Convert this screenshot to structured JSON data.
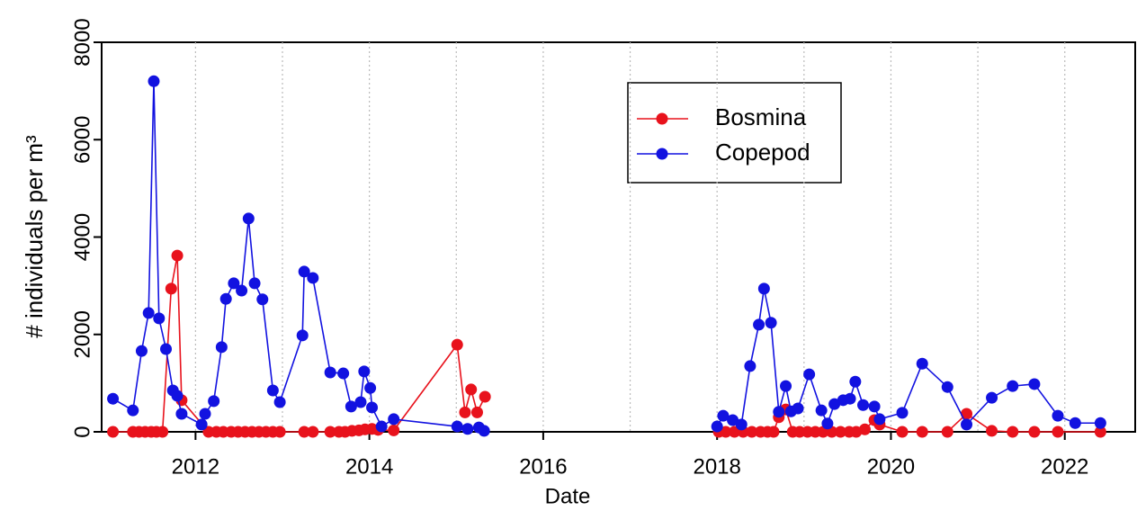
{
  "chart_data": {
    "type": "line",
    "x_label": "Date",
    "y_label": "# individuals per m³",
    "xlim": [
      2010.92,
      2022.81
    ],
    "xticks": [
      2012,
      2014,
      2016,
      2018,
      2020,
      2022
    ],
    "x_grid": [
      2012,
      2013,
      2014,
      2015,
      2016,
      2017,
      2018,
      2019,
      2020,
      2021,
      2022
    ],
    "ylim": [
      0,
      8000
    ],
    "yticks": [
      0,
      2000,
      4000,
      6000,
      8000
    ],
    "legend_position": "top-center",
    "series": [
      {
        "name": "Bosmina",
        "color": "#e8121c",
        "x": [
          2011.05,
          2011.28,
          2011.35,
          2011.42,
          2011.49,
          2011.55,
          2011.62,
          2011.72,
          2011.79,
          2011.84,
          2012.15,
          2012.24,
          2012.32,
          2012.41,
          2012.49,
          2012.57,
          2012.65,
          2012.73,
          2012.81,
          2012.89,
          2012.97,
          2013.25,
          2013.35,
          2013.55,
          2013.65,
          2013.72,
          2013.8,
          2013.88,
          2013.95,
          2014.03,
          2014.1,
          2014.28,
          2015.01,
          2015.1,
          2015.17,
          2015.24,
          2015.33,
          2015.4,
          2018.02,
          2018.1,
          2018.2,
          2018.3,
          2018.4,
          2018.5,
          2018.58,
          2018.65,
          2018.71,
          2018.79,
          2018.87,
          2018.95,
          2019.04,
          2019.13,
          2019.22,
          2019.32,
          2019.42,
          2019.52,
          2019.6,
          2019.7,
          2019.81,
          2019.87,
          2020.13,
          2020.36,
          2020.65,
          2020.87,
          2021.16,
          2021.4,
          2021.65,
          2021.92,
          2022.41
        ],
        "values": [
          0,
          0,
          0,
          0,
          0,
          0,
          0,
          2940,
          3620,
          650,
          0,
          0,
          0,
          0,
          0,
          0,
          0,
          0,
          0,
          0,
          0,
          0,
          0,
          0,
          0,
          0,
          20,
          30,
          50,
          60,
          40,
          30,
          1790,
          400,
          870,
          400,
          720,
          null,
          0,
          0,
          0,
          0,
          0,
          0,
          0,
          0,
          300,
          460,
          0,
          0,
          0,
          0,
          0,
          0,
          0,
          0,
          0,
          50,
          240,
          150,
          0,
          0,
          0,
          370,
          20,
          0,
          0,
          0,
          0
        ]
      },
      {
        "name": "Copepod",
        "color": "#1212e0",
        "x": [
          2011.05,
          2011.28,
          2011.38,
          2011.46,
          2011.52,
          2011.58,
          2011.66,
          2011.74,
          2011.79,
          2011.84,
          2012.07,
          2012.11,
          2012.21,
          2012.3,
          2012.35,
          2012.44,
          2012.53,
          2012.61,
          2012.68,
          2012.77,
          2012.89,
          2012.97,
          2013.23,
          2013.25,
          2013.35,
          2013.55,
          2013.7,
          2013.79,
          2013.9,
          2013.94,
          2014.01,
          2014.03,
          2014.14,
          2014.28,
          2015.01,
          2015.13,
          2015.26,
          2015.32,
          2015.4,
          2018.0,
          2018.07,
          2018.18,
          2018.28,
          2018.38,
          2018.48,
          2018.54,
          2018.62,
          2018.71,
          2018.79,
          2018.85,
          2018.93,
          2019.06,
          2019.2,
          2019.27,
          2019.35,
          2019.45,
          2019.53,
          2019.59,
          2019.68,
          2019.81,
          2019.87,
          2020.13,
          2020.36,
          2020.65,
          2020.87,
          2021.16,
          2021.4,
          2021.65,
          2021.92,
          2022.12,
          2022.41
        ],
        "values": [
          680,
          440,
          1660,
          2440,
          7200,
          2330,
          1700,
          850,
          740,
          370,
          150,
          370,
          630,
          1740,
          2730,
          3050,
          2900,
          4380,
          3050,
          2720,
          850,
          610,
          1980,
          3290,
          3160,
          1220,
          1200,
          520,
          610,
          1240,
          900,
          500,
          110,
          260,
          110,
          60,
          90,
          20,
          null,
          110,
          330,
          240,
          150,
          1350,
          2200,
          2940,
          2240,
          410,
          940,
          420,
          480,
          1180,
          440,
          170,
          570,
          650,
          680,
          1030,
          550,
          520,
          260,
          390,
          1400,
          920,
          150,
          700,
          940,
          980,
          330,
          180,
          180
        ]
      }
    ]
  }
}
